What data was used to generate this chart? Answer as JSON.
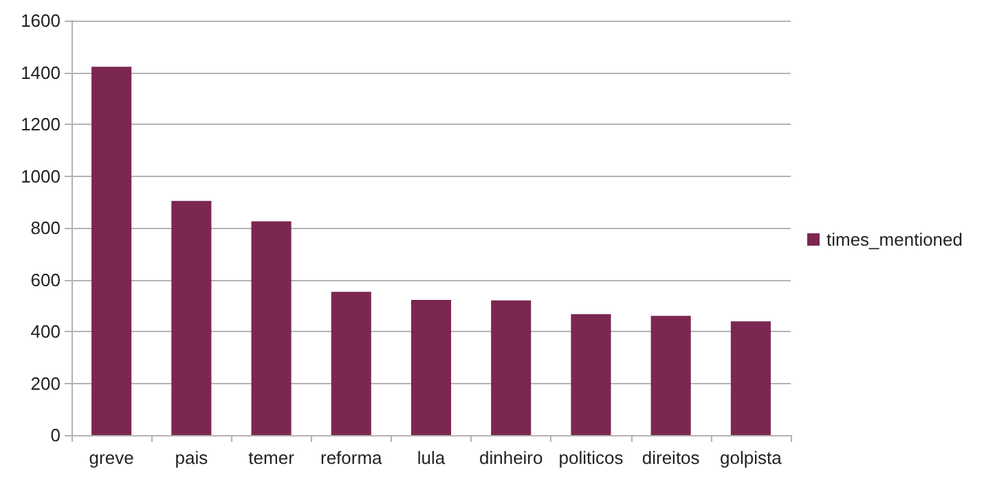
{
  "chart_data": {
    "type": "bar",
    "categories": [
      "greve",
      "pais",
      "temer",
      "reforma",
      "lula",
      "dinheiro",
      "politicos",
      "direitos",
      "golpista"
    ],
    "series": [
      {
        "name": "times_mentioned",
        "color": "#7b2752",
        "values": [
          1422,
          904,
          825,
          553,
          522,
          520,
          467,
          460,
          439
        ]
      }
    ],
    "ylim": [
      0,
      1600
    ],
    "yticks": [
      0,
      200,
      400,
      600,
      800,
      1000,
      1200,
      1400,
      1600
    ],
    "grid": "y",
    "legend": "right"
  }
}
